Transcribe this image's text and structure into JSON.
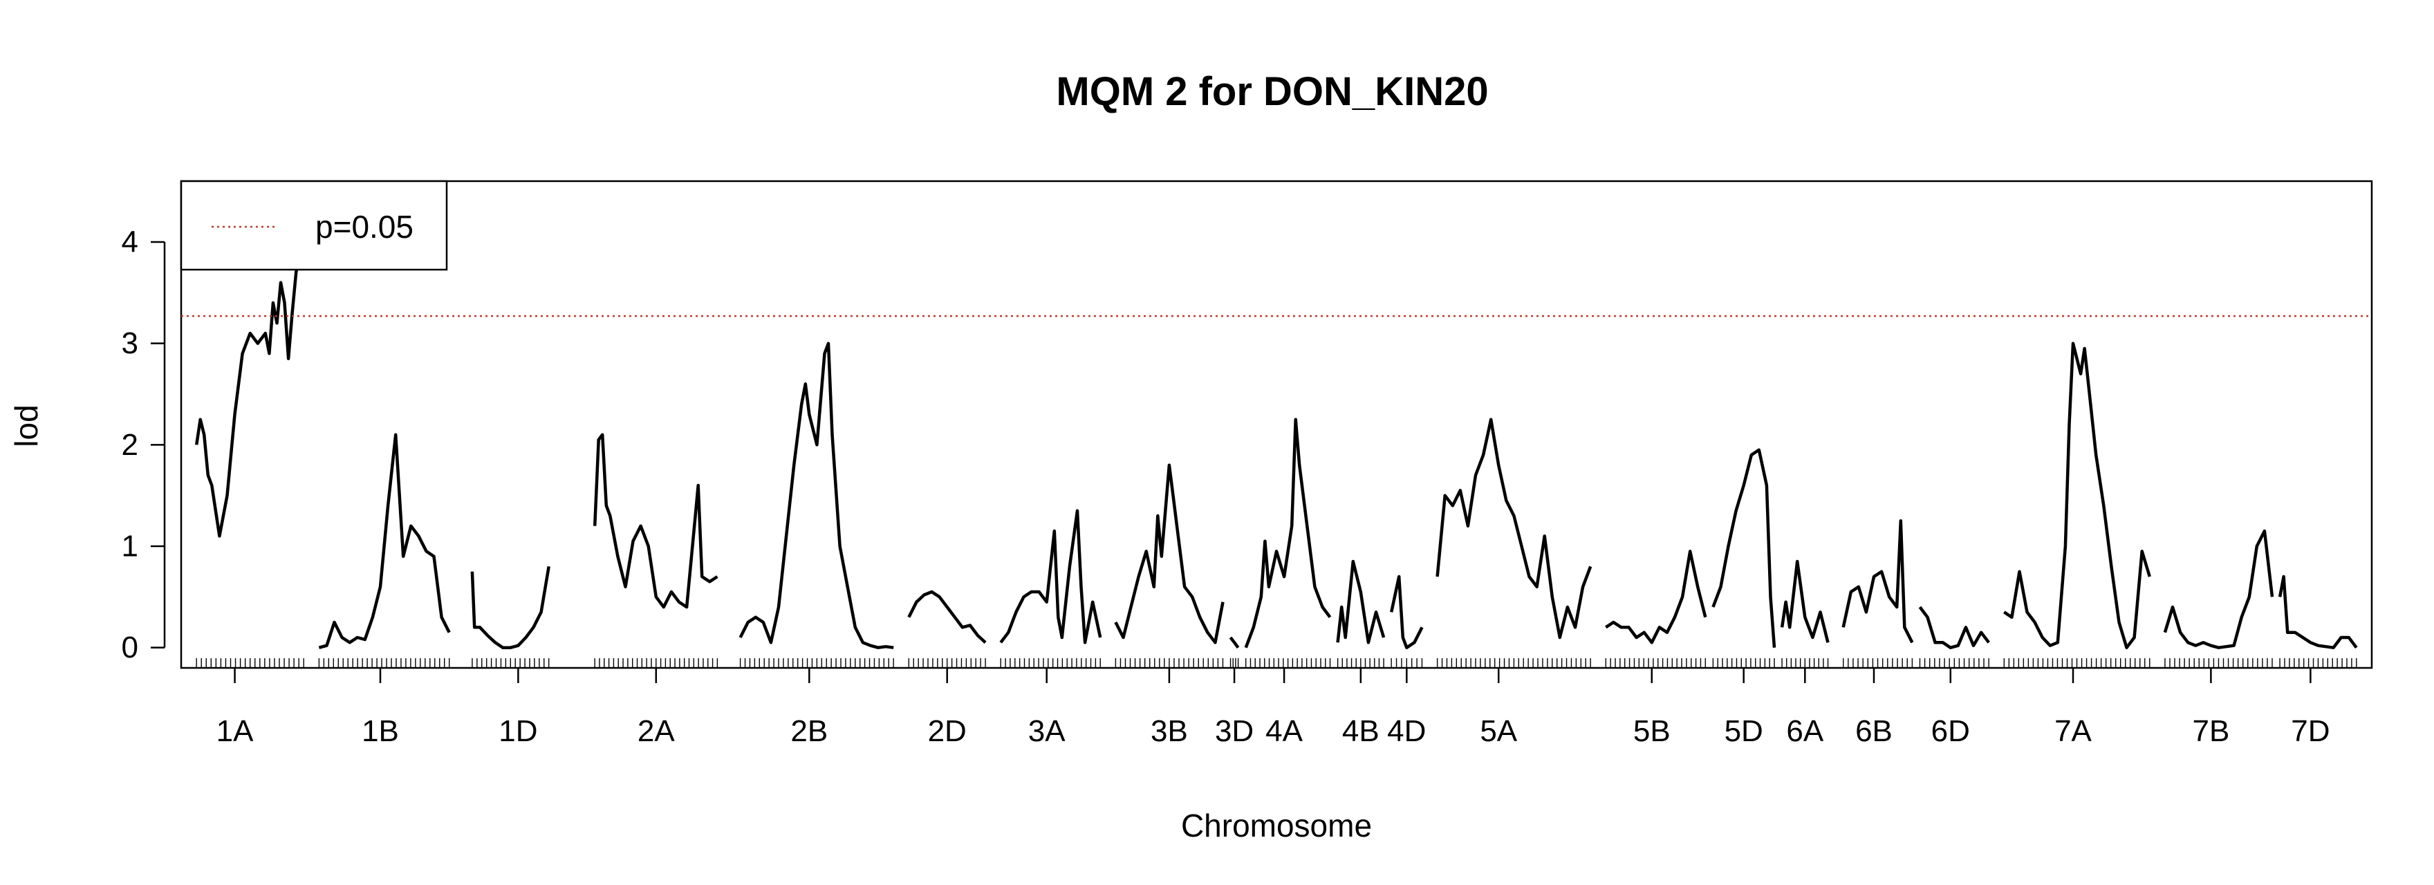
{
  "chart_data": {
    "type": "line",
    "title": "MQM 2 for DON_KIN20",
    "xlabel": "Chromosome",
    "ylabel": "lod",
    "ylim": [
      -0.2,
      4.6
    ],
    "yticks": [
      0,
      1,
      2,
      3,
      4
    ],
    "grid": false,
    "legend_position": "top-left",
    "legend": [
      {
        "label": "p=0.05",
        "color": "#c0392b",
        "style": "dotted"
      }
    ],
    "threshold": {
      "label": "p=0.05",
      "y": 3.27,
      "color": "#c0392b"
    },
    "series_color": "#000000",
    "chromosomes": [
      {
        "name": "1A",
        "start": 0,
        "end": 14,
        "label_pos": 5,
        "x": [
          0,
          0.5,
          1,
          1.5,
          2,
          3,
          4,
          5,
          6,
          7,
          8,
          9,
          9.5,
          10,
          10.5,
          11,
          11.5,
          12,
          12.5,
          13,
          13.5,
          14
        ],
        "y": [
          2.0,
          2.25,
          2.1,
          1.7,
          1.6,
          1.1,
          1.5,
          2.3,
          2.9,
          3.1,
          3.0,
          3.1,
          2.9,
          3.4,
          3.2,
          3.6,
          3.4,
          2.85,
          3.3,
          3.7,
          3.9,
          4.1
        ]
      },
      {
        "name": "1B",
        "start": 16,
        "end": 33,
        "label_pos": 24,
        "x": [
          16,
          17,
          18,
          19,
          20,
          21,
          22,
          23,
          24,
          25,
          26,
          27,
          28,
          29,
          30,
          31,
          32,
          33
        ],
        "y": [
          0.0,
          0.02,
          0.25,
          0.1,
          0.05,
          0.1,
          0.08,
          0.3,
          0.6,
          1.4,
          2.1,
          0.9,
          1.2,
          1.1,
          0.95,
          0.9,
          0.3,
          0.15
        ]
      },
      {
        "name": "1D",
        "start": 36,
        "end": 46,
        "label_pos": 42,
        "x": [
          36,
          36.3,
          37,
          38,
          39,
          40,
          41,
          42,
          43,
          44,
          45,
          46
        ],
        "y": [
          0.75,
          0.2,
          0.2,
          0.12,
          0.05,
          0.0,
          0.0,
          0.02,
          0.1,
          0.2,
          0.35,
          0.8
        ]
      },
      {
        "name": "2A",
        "start": 52,
        "end": 68,
        "label_pos": 60,
        "x": [
          52,
          52.5,
          53,
          53.5,
          54,
          55,
          56,
          57,
          58,
          59,
          60,
          61,
          62,
          63,
          64,
          65,
          65.5,
          66,
          67,
          68
        ],
        "y": [
          1.2,
          2.05,
          2.1,
          1.4,
          1.3,
          0.9,
          0.6,
          1.05,
          1.2,
          1.0,
          0.5,
          0.4,
          0.55,
          0.45,
          0.4,
          1.2,
          1.6,
          0.7,
          0.65,
          0.7
        ]
      },
      {
        "name": "2B",
        "start": 71,
        "end": 91,
        "label_pos": 80,
        "x": [
          71,
          72,
          73,
          74,
          75,
          76,
          77,
          78,
          79,
          79.5,
          80,
          81,
          82,
          82.5,
          83,
          84,
          85,
          86,
          87,
          88,
          89,
          90,
          91
        ],
        "y": [
          0.1,
          0.25,
          0.3,
          0.25,
          0.05,
          0.4,
          1.1,
          1.8,
          2.4,
          2.6,
          2.3,
          2.0,
          2.9,
          3.0,
          2.1,
          1.0,
          0.6,
          0.2,
          0.05,
          0.02,
          0.0,
          0.01,
          0.0
        ]
      },
      {
        "name": "2D",
        "start": 93,
        "end": 103,
        "label_pos": 98,
        "x": [
          93,
          94,
          95,
          96,
          97,
          98,
          99,
          100,
          101,
          102,
          103
        ],
        "y": [
          0.3,
          0.45,
          0.52,
          0.55,
          0.5,
          0.4,
          0.3,
          0.2,
          0.22,
          0.12,
          0.05
        ]
      },
      {
        "name": "3A",
        "start": 105,
        "end": 118,
        "label_pos": 111,
        "x": [
          105,
          106,
          107,
          108,
          109,
          110,
          111,
          112,
          112.5,
          113,
          114,
          115,
          115.5,
          116,
          117,
          118
        ],
        "y": [
          0.05,
          0.15,
          0.35,
          0.5,
          0.55,
          0.55,
          0.45,
          1.15,
          0.3,
          0.1,
          0.8,
          1.35,
          0.6,
          0.05,
          0.45,
          0.1
        ]
      },
      {
        "name": "3B",
        "start": 120,
        "end": 134,
        "label_pos": 127,
        "x": [
          120,
          121,
          122,
          123,
          124,
          125,
          125.5,
          126,
          127,
          127.5,
          128,
          129,
          130,
          131,
          132,
          133,
          134
        ],
        "y": [
          0.25,
          0.1,
          0.4,
          0.7,
          0.95,
          0.6,
          1.3,
          0.9,
          1.8,
          1.5,
          1.2,
          0.6,
          0.5,
          0.3,
          0.15,
          0.05,
          0.45
        ]
      },
      {
        "name": "3D",
        "start": 135,
        "end": 136,
        "label_pos": 135.5,
        "x": [
          135,
          135.5,
          136
        ],
        "y": [
          0.1,
          0.05,
          0.0
        ]
      },
      {
        "name": "4A",
        "start": 137,
        "end": 148,
        "label_pos": 142,
        "x": [
          137,
          138,
          139,
          139.5,
          140,
          141,
          142,
          143,
          143.5,
          144,
          145,
          146,
          147,
          148
        ],
        "y": [
          0.0,
          0.2,
          0.5,
          1.05,
          0.6,
          0.95,
          0.7,
          1.2,
          2.25,
          1.8,
          1.2,
          0.6,
          0.4,
          0.3
        ]
      },
      {
        "name": "4B",
        "start": 149,
        "end": 155,
        "label_pos": 152,
        "x": [
          149,
          149.5,
          150,
          151,
          152,
          153,
          154,
          155
        ],
        "y": [
          0.05,
          0.4,
          0.1,
          0.85,
          0.55,
          0.05,
          0.35,
          0.1
        ]
      },
      {
        "name": "4D",
        "start": 156,
        "end": 160,
        "label_pos": 158,
        "x": [
          156,
          157,
          157.5,
          158,
          159,
          160
        ],
        "y": [
          0.35,
          0.7,
          0.1,
          0.0,
          0.05,
          0.2
        ]
      },
      {
        "name": "5A",
        "start": 162,
        "end": 182,
        "label_pos": 170,
        "x": [
          162,
          163,
          164,
          165,
          166,
          167,
          168,
          169,
          170,
          171,
          172,
          173,
          174,
          175,
          176,
          177,
          178,
          179,
          180,
          181,
          182
        ],
        "y": [
          0.7,
          1.5,
          1.4,
          1.55,
          1.2,
          1.7,
          1.9,
          2.25,
          1.8,
          1.45,
          1.3,
          1.0,
          0.7,
          0.6,
          1.1,
          0.5,
          0.1,
          0.4,
          0.2,
          0.6,
          0.8
        ]
      },
      {
        "name": "5B",
        "start": 184,
        "end": 197,
        "label_pos": 190,
        "x": [
          184,
          185,
          186,
          187,
          188,
          189,
          190,
          191,
          192,
          193,
          194,
          195,
          196,
          197
        ],
        "y": [
          0.2,
          0.25,
          0.2,
          0.2,
          0.1,
          0.15,
          0.05,
          0.2,
          0.15,
          0.3,
          0.5,
          0.95,
          0.6,
          0.3
        ]
      },
      {
        "name": "5D",
        "start": 198,
        "end": 206,
        "label_pos": 202,
        "x": [
          198,
          199,
          200,
          201,
          202,
          203,
          204,
          205,
          205.5,
          206
        ],
        "y": [
          0.4,
          0.6,
          1.0,
          1.35,
          1.6,
          1.9,
          1.95,
          1.6,
          0.5,
          0.0
        ]
      },
      {
        "name": "6A",
        "start": 207,
        "end": 213,
        "label_pos": 210,
        "x": [
          207,
          207.5,
          208,
          209,
          210,
          211,
          212,
          213
        ],
        "y": [
          0.2,
          0.45,
          0.2,
          0.85,
          0.3,
          0.1,
          0.35,
          0.05
        ]
      },
      {
        "name": "6B",
        "start": 215,
        "end": 224,
        "label_pos": 219,
        "x": [
          215,
          216,
          217,
          218,
          219,
          220,
          221,
          222,
          222.5,
          223,
          224
        ],
        "y": [
          0.2,
          0.55,
          0.6,
          0.35,
          0.7,
          0.75,
          0.5,
          0.4,
          1.25,
          0.2,
          0.05
        ]
      },
      {
        "name": "6D",
        "start": 225,
        "end": 234,
        "label_pos": 229,
        "x": [
          225,
          226,
          227,
          228,
          229,
          230,
          231,
          232,
          233,
          234
        ],
        "y": [
          0.4,
          0.3,
          0.05,
          0.05,
          0.0,
          0.02,
          0.2,
          0.02,
          0.15,
          0.05
        ]
      },
      {
        "name": "7A",
        "start": 236,
        "end": 255,
        "label_pos": 245,
        "x": [
          236,
          237,
          238,
          239,
          240,
          241,
          242,
          243,
          244,
          244.5,
          245,
          246,
          246.5,
          247,
          248,
          249,
          250,
          251,
          252,
          253,
          254,
          255
        ],
        "y": [
          0.35,
          0.3,
          0.75,
          0.35,
          0.25,
          0.1,
          0.02,
          0.05,
          1.0,
          2.2,
          3.0,
          2.7,
          2.95,
          2.6,
          1.9,
          1.4,
          0.8,
          0.25,
          0.0,
          0.1,
          0.95,
          0.7
        ]
      },
      {
        "name": "7B",
        "start": 257,
        "end": 271,
        "label_pos": 263,
        "x": [
          257,
          258,
          259,
          260,
          261,
          262,
          263,
          264,
          265,
          266,
          267,
          268,
          269,
          270,
          271
        ],
        "y": [
          0.15,
          0.4,
          0.15,
          0.05,
          0.02,
          0.05,
          0.02,
          0.0,
          0.01,
          0.02,
          0.3,
          0.5,
          1.0,
          1.15,
          0.5
        ]
      },
      {
        "name": "7D",
        "start": 272,
        "end": 282,
        "label_pos": 276,
        "x": [
          272,
          272.5,
          273,
          274,
          275,
          276,
          277,
          278,
          279,
          280,
          281,
          282
        ],
        "y": [
          0.5,
          0.7,
          0.15,
          0.15,
          0.1,
          0.05,
          0.02,
          0.01,
          0.0,
          0.1,
          0.1,
          0.0
        ]
      }
    ]
  }
}
